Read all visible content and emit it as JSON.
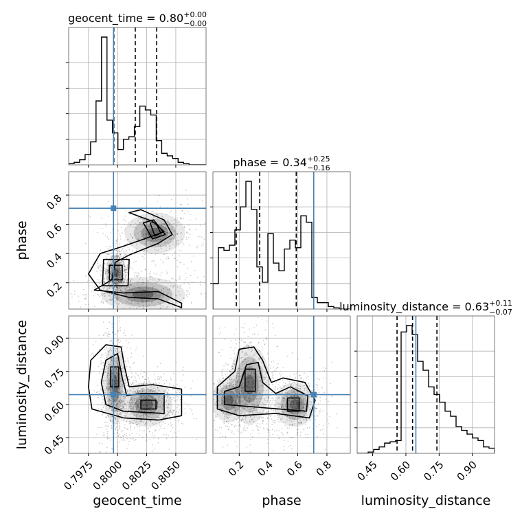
{
  "chart_data": {
    "type": "corner",
    "truth_color": "#4682b4",
    "parameters": [
      {
        "name": "geocent_time",
        "label": "geocent_time",
        "title": {
          "prefix": "geocent_time = 0.80",
          "plus": "+0.00",
          "minus": "−0.00"
        },
        "range": [
          0.7958,
          0.8076
        ],
        "ticks": [
          0.7975,
          0.8,
          0.8025,
          0.805
        ],
        "tick_labels": [
          "0.7975",
          "0.8000",
          "0.8025",
          "0.8050"
        ],
        "truth": 0.79965,
        "quantiles": [
          0.79968,
          0.80152,
          0.80336
        ],
        "hist": {
          "edges": [
            0.7958,
            0.79627,
            0.79674,
            0.79721,
            0.79768,
            0.79815,
            0.79862,
            0.79909,
            0.79956,
            0.80003,
            0.8005,
            0.80097,
            0.80144,
            0.80191,
            0.80238,
            0.80285,
            0.80332,
            0.80379,
            0.80426,
            0.80473,
            0.8052,
            0.80567,
            0.80614,
            0.80661,
            0.80708,
            0.8076
          ],
          "counts": [
            0.01,
            0.02,
            0.04,
            0.08,
            0.18,
            0.5,
            1.0,
            0.35,
            0.25,
            0.12,
            0.2,
            0.22,
            0.3,
            0.46,
            0.43,
            0.39,
            0.19,
            0.09,
            0.07,
            0.05,
            0.02,
            0.01,
            0.0,
            0.0,
            0.0
          ]
        }
      },
      {
        "name": "phase",
        "label": "phase",
        "title": {
          "prefix": "phase = 0.34",
          "plus": "+0.25",
          "minus": "−0.16"
        },
        "range": [
          0.02,
          0.96
        ],
        "ticks": [
          0.2,
          0.4,
          0.6,
          0.8
        ],
        "tick_labels": [
          "0.2",
          "0.4",
          "0.6",
          "0.8"
        ],
        "truth": 0.71,
        "quantiles": [
          0.18,
          0.34,
          0.59
        ],
        "hist": {
          "edges": [
            0.02,
            0.0576,
            0.0952,
            0.1328,
            0.1704,
            0.208,
            0.2456,
            0.2832,
            0.3208,
            0.3584,
            0.396,
            0.4336,
            0.4712,
            0.5088,
            0.5464,
            0.584,
            0.6216,
            0.6592,
            0.6968,
            0.7344,
            0.772,
            0.8096,
            0.8472,
            0.8848,
            0.9224,
            0.96
          ],
          "counts": [
            0.2,
            0.48,
            0.46,
            0.5,
            0.62,
            0.8,
            1.0,
            0.78,
            0.33,
            0.21,
            0.59,
            0.36,
            0.3,
            0.47,
            0.54,
            0.48,
            0.73,
            0.68,
            0.09,
            0.05,
            0.05,
            0.02,
            0.01,
            0.0,
            0.0
          ]
        }
      },
      {
        "name": "luminosity_distance",
        "label": "luminosity_distance",
        "title": {
          "prefix": "luminosity_distance = 0.63",
          "plus": "+0.11",
          "minus": "−0.07"
        },
        "range": [
          0.38,
          1.0
        ],
        "ticks": [
          0.45,
          0.6,
          0.75,
          0.9
        ],
        "tick_labels": [
          "0.45",
          "0.60",
          "0.75",
          "0.90"
        ],
        "truth": 0.645,
        "quantiles": [
          0.56,
          0.63,
          0.74
        ],
        "hist": {
          "edges": [
            0.38,
            0.4048,
            0.4296,
            0.4544,
            0.4792,
            0.504,
            0.5288,
            0.5536,
            0.5784,
            0.6032,
            0.628,
            0.6528,
            0.6776,
            0.7024,
            0.7272,
            0.752,
            0.7768,
            0.8016,
            0.8264,
            0.8512,
            0.876,
            0.9008,
            0.9256,
            0.9504,
            0.9752,
            1.0
          ],
          "counts": [
            0.0,
            0.0,
            0.01,
            0.03,
            0.05,
            0.08,
            0.09,
            0.1,
            0.95,
            1.0,
            0.93,
            0.72,
            0.65,
            0.52,
            0.46,
            0.4,
            0.33,
            0.29,
            0.21,
            0.18,
            0.15,
            0.12,
            0.1,
            0.05,
            0.04
          ]
        }
      }
    ],
    "pairs": [
      {
        "x": "geocent_time",
        "y": "phase",
        "truth_x": 0.79965,
        "truth_y": 0.71,
        "clusters": [
          {
            "cx": 0.79985,
            "cy": 0.27,
            "sx": 0.00045,
            "sy": 0.06,
            "w": 0.45
          },
          {
            "cx": 0.8032,
            "cy": 0.54,
            "sx": 0.0013,
            "sy": 0.07,
            "w": 0.25
          },
          {
            "cx": 0.8022,
            "cy": 0.12,
            "sx": 0.0018,
            "sy": 0.06,
            "w": 0.3
          }
        ],
        "contours": [
          [
            [
              0.7993,
              0.22
            ],
            [
              0.8004,
              0.22
            ],
            [
              0.8004,
              0.32
            ],
            [
              0.7993,
              0.32
            ]
          ],
          [
            [
              0.7987,
              0.18
            ],
            [
              0.8009,
              0.18
            ],
            [
              0.801,
              0.36
            ],
            [
              0.7988,
              0.36
            ]
          ],
          [
            [
              0.798,
              0.15
            ],
            [
              0.8005,
              0.13
            ],
            [
              0.8035,
              0.14
            ],
            [
              0.8055,
              0.06
            ],
            [
              0.8055,
              0.03
            ],
            [
              0.8035,
              0.09
            ],
            [
              0.801,
              0.1
            ],
            [
              0.7985,
              0.15
            ],
            [
              0.7975,
              0.26
            ],
            [
              0.7985,
              0.4
            ],
            [
              0.8005,
              0.45
            ],
            [
              0.803,
              0.52
            ],
            [
              0.804,
              0.55
            ],
            [
              0.803,
              0.62
            ],
            [
              0.801,
              0.68
            ],
            [
              0.802,
              0.7
            ],
            [
              0.804,
              0.63
            ],
            [
              0.8047,
              0.53
            ],
            [
              0.8035,
              0.47
            ],
            [
              0.801,
              0.39
            ],
            [
              0.7998,
              0.34
            ],
            [
              0.7995,
              0.22
            ]
          ],
          [
            [
              0.8022,
              0.61
            ],
            [
              0.8031,
              0.63
            ],
            [
              0.8041,
              0.53
            ],
            [
              0.803,
              0.5
            ],
            [
              0.8025,
              0.57
            ]
          ],
          [
            [
              0.8028,
              0.61
            ],
            [
              0.8033,
              0.61
            ],
            [
              0.8037,
              0.54
            ],
            [
              0.8032,
              0.52
            ]
          ]
        ]
      },
      {
        "x": "geocent_time",
        "y": "luminosity_distance",
        "truth_x": 0.79965,
        "truth_y": 0.645,
        "clusters": [
          {
            "cx": 0.79975,
            "cy": 0.69,
            "sx": 0.0005,
            "sy": 0.09,
            "w": 0.45
          },
          {
            "cx": 0.8025,
            "cy": 0.6,
            "sx": 0.0011,
            "sy": 0.05,
            "w": 0.55
          }
        ],
        "contours": [
          [
            [
              0.7994,
              0.68
            ],
            [
              0.8001,
              0.68
            ],
            [
              0.8001,
              0.77
            ],
            [
              0.7994,
              0.77
            ]
          ],
          [
            [
              0.802,
              0.58
            ],
            [
              0.8033,
              0.58
            ],
            [
              0.8033,
              0.62
            ],
            [
              0.802,
              0.62
            ]
          ],
          [
            [
              0.799,
              0.6
            ],
            [
              0.8005,
              0.57
            ],
            [
              0.804,
              0.56
            ],
            [
              0.804,
              0.65
            ],
            [
              0.802,
              0.65
            ],
            [
              0.8008,
              0.64
            ],
            [
              0.8004,
              0.72
            ],
            [
              0.8,
              0.83
            ],
            [
              0.799,
              0.8
            ],
            [
              0.7986,
              0.7
            ]
          ],
          [
            [
              0.7978,
              0.58
            ],
            [
              0.8005,
              0.54
            ],
            [
              0.8035,
              0.53
            ],
            [
              0.8055,
              0.55
            ],
            [
              0.8055,
              0.67
            ],
            [
              0.803,
              0.69
            ],
            [
              0.801,
              0.68
            ],
            [
              0.8006,
              0.77
            ],
            [
              0.8003,
              0.86
            ],
            [
              0.799,
              0.87
            ],
            [
              0.7977,
              0.8
            ],
            [
              0.7975,
              0.68
            ]
          ]
        ]
      },
      {
        "x": "phase",
        "y": "luminosity_distance",
        "truth_x": 0.71,
        "truth_y": 0.645,
        "clusters": [
          {
            "cx": 0.27,
            "cy": 0.69,
            "sx": 0.07,
            "sy": 0.09,
            "w": 0.4
          },
          {
            "cx": 0.58,
            "cy": 0.6,
            "sx": 0.07,
            "sy": 0.05,
            "w": 0.4
          },
          {
            "cx": 0.13,
            "cy": 0.62,
            "sx": 0.06,
            "sy": 0.05,
            "w": 0.2
          }
        ],
        "contours": [
          [
            [
              0.53,
              0.57
            ],
            [
              0.61,
              0.57
            ],
            [
              0.61,
              0.63
            ],
            [
              0.53,
              0.63
            ]
          ],
          [
            [
              0.24,
              0.66
            ],
            [
              0.31,
              0.66
            ],
            [
              0.31,
              0.76
            ],
            [
              0.24,
              0.76
            ]
          ],
          [
            [
              0.1,
              0.6
            ],
            [
              0.66,
              0.57
            ],
            [
              0.67,
              0.64
            ],
            [
              0.55,
              0.68
            ],
            [
              0.45,
              0.65
            ],
            [
              0.36,
              0.7
            ],
            [
              0.33,
              0.79
            ],
            [
              0.25,
              0.78
            ],
            [
              0.2,
              0.68
            ],
            [
              0.1,
              0.66
            ]
          ],
          [
            [
              0.05,
              0.58
            ],
            [
              0.2,
              0.55
            ],
            [
              0.45,
              0.56
            ],
            [
              0.68,
              0.54
            ],
            [
              0.72,
              0.62
            ],
            [
              0.65,
              0.7
            ],
            [
              0.5,
              0.72
            ],
            [
              0.42,
              0.7
            ],
            [
              0.36,
              0.8
            ],
            [
              0.3,
              0.86
            ],
            [
              0.2,
              0.85
            ],
            [
              0.17,
              0.75
            ],
            [
              0.05,
              0.68
            ]
          ]
        ]
      }
    ]
  }
}
